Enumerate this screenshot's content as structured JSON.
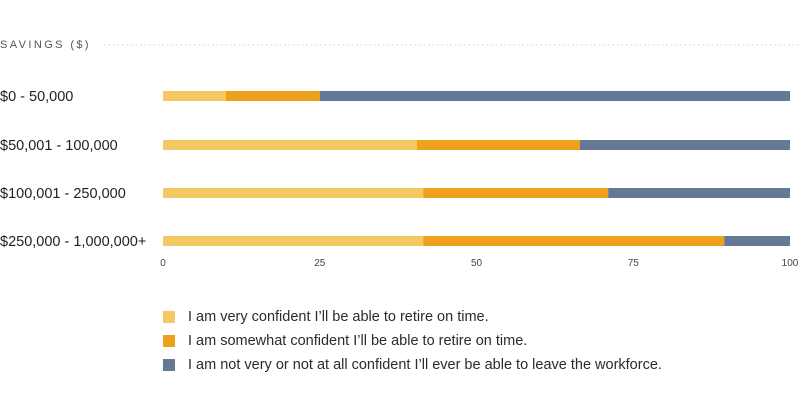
{
  "chart_data": {
    "type": "bar",
    "orientation": "horizontal",
    "stacked": true,
    "title": "",
    "ylabel": "SAVINGS ($)",
    "xlabel": "",
    "categories": [
      "$0 - 50,000",
      "$50,001 - 100,000",
      "$100,001 - 250,000",
      "$250,000 - 1,000,000+"
    ],
    "series": [
      {
        "name": "I am very confident I’ll be able to retire on time.",
        "color": "#f5c862",
        "values": [
          10,
          40.5,
          41.5,
          41.5
        ]
      },
      {
        "name": "I am somewhat confident I’ll be able to retire on time.",
        "color": "#eea21b",
        "values": [
          15,
          26,
          29.5,
          48
        ]
      },
      {
        "name": "I am not very or not at all confident I’ll ever be able to leave the workforce.",
        "color": "#657997",
        "values": [
          75,
          33.5,
          29,
          10.5
        ]
      }
    ],
    "xlim": [
      0,
      100
    ],
    "xticks": [
      "0",
      "25",
      "50",
      "75",
      "100"
    ],
    "grid": false,
    "legend_position": "bottom"
  }
}
